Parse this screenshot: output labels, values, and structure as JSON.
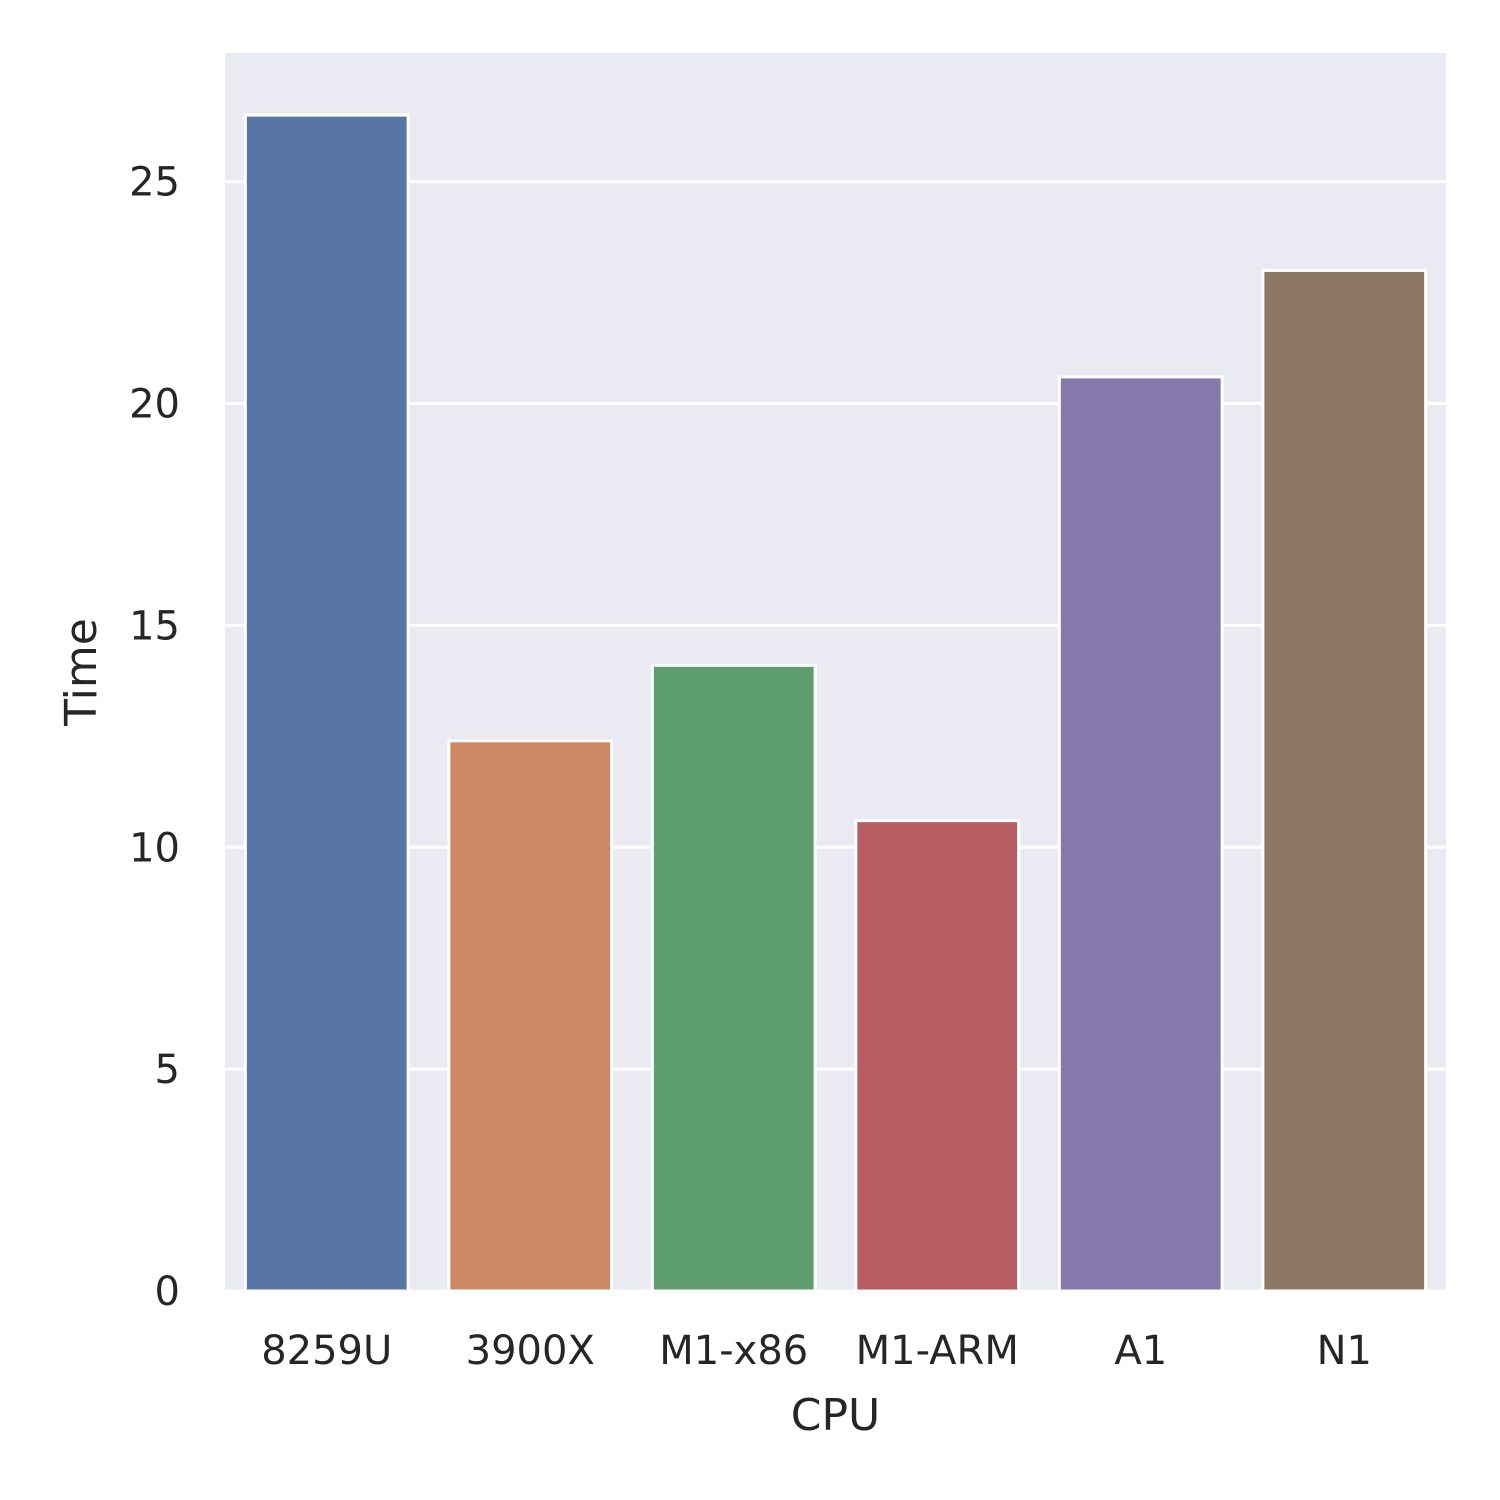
{
  "chart_data": {
    "type": "bar",
    "categories": [
      "8259U",
      "3900X",
      "M1-x86",
      "M1-ARM",
      "A1",
      "N1"
    ],
    "values": [
      26.5,
      12.4,
      14.1,
      10.6,
      20.6,
      23.0
    ],
    "colors": [
      "#5875a4",
      "#cc8963",
      "#5f9e6e",
      "#b55d60",
      "#857aab",
      "#8d7866"
    ],
    "xlabel": "CPU",
    "ylabel": "Time",
    "ylim": [
      0,
      27.9
    ],
    "yticks": [
      0,
      5,
      10,
      15,
      20,
      25
    ],
    "grid": true,
    "background": "#eaeaf2",
    "grid_color": "#ffffff"
  }
}
